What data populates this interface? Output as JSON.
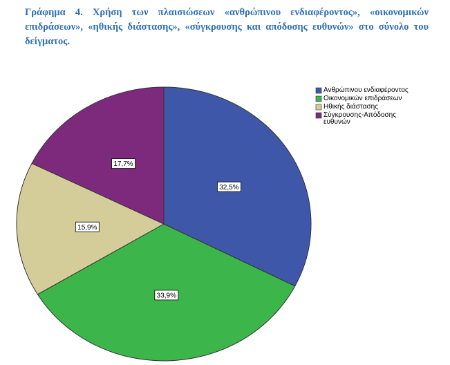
{
  "chart_data": {
    "type": "pie",
    "title": "Γράφημα 4. Χρήση των πλαισιώσεων «ανθρώπινου ενδιαφέροντος», «οικονομικών επιδράσεων», «ηθικής διάστασης», «σύγκρουσης και απόδοσης ευθυνών» στο σύνολο του δείγματος.",
    "categories": [
      "Ανθρώπινου ενδιαφέροντος",
      "Οικονομικών επιδράσεων",
      "Ηθικής διάστασης",
      "Σύγκρουσης-Απόδοσης ευθυνών"
    ],
    "values": [
      32.5,
      33.9,
      15.9,
      17.7
    ],
    "value_labels": [
      "32,5%",
      "33,9%",
      "15,9%",
      "17,7%"
    ],
    "colors": [
      "#3f57a9",
      "#3cb54a",
      "#d4cd99",
      "#7e2a7c"
    ]
  }
}
